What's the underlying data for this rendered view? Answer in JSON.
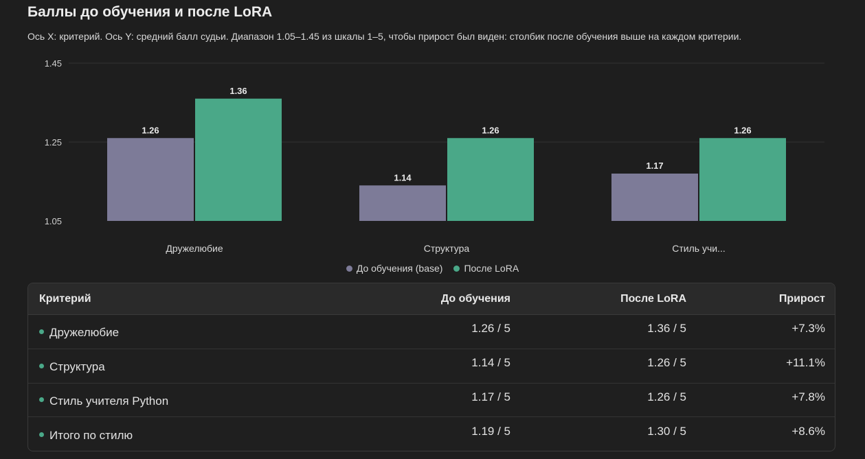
{
  "title": "Баллы до обучения и после LoRA",
  "subtitle": "Ось X: критерий. Ось Y: средний балл судьи. Диапазон 1.05–1.45 из шкалы 1–5, чтобы прирост был виден: столбик после обучения выше на каждом критерии.",
  "colors": {
    "base": "#7d7b98",
    "lora": "#4aa888",
    "grid": "#333333",
    "bullet": "#4aa888"
  },
  "chart_data": {
    "type": "bar",
    "categories": [
      "Дружелюбие",
      "Структура",
      "Стиль учи..."
    ],
    "series": [
      {
        "name": "До обучения (base)",
        "values": [
          1.26,
          1.14,
          1.17
        ],
        "labels": [
          "1.26",
          "1.14",
          "1.17"
        ]
      },
      {
        "name": "После LoRA",
        "values": [
          1.36,
          1.26,
          1.26
        ],
        "labels": [
          "1.36",
          "1.26",
          "1.26"
        ]
      }
    ],
    "ylim": [
      1.05,
      1.45
    ],
    "yticks": [
      "1.05",
      "1.25",
      "1.45"
    ],
    "grid": true,
    "legend": "bottom-center"
  },
  "table": {
    "headers": [
      "Критерий",
      "До обучения",
      "После LoRA",
      "Прирост"
    ],
    "rows": [
      [
        "Дружелюбие",
        "1.26 / 5",
        "1.36 / 5",
        "+7.3%"
      ],
      [
        "Структура",
        "1.14 / 5",
        "1.26 / 5",
        "+11.1%"
      ],
      [
        "Стиль учителя Python",
        "1.17 / 5",
        "1.26 / 5",
        "+7.8%"
      ],
      [
        "Итого по стилю",
        "1.19 / 5",
        "1.30 / 5",
        "+8.6%"
      ]
    ]
  }
}
